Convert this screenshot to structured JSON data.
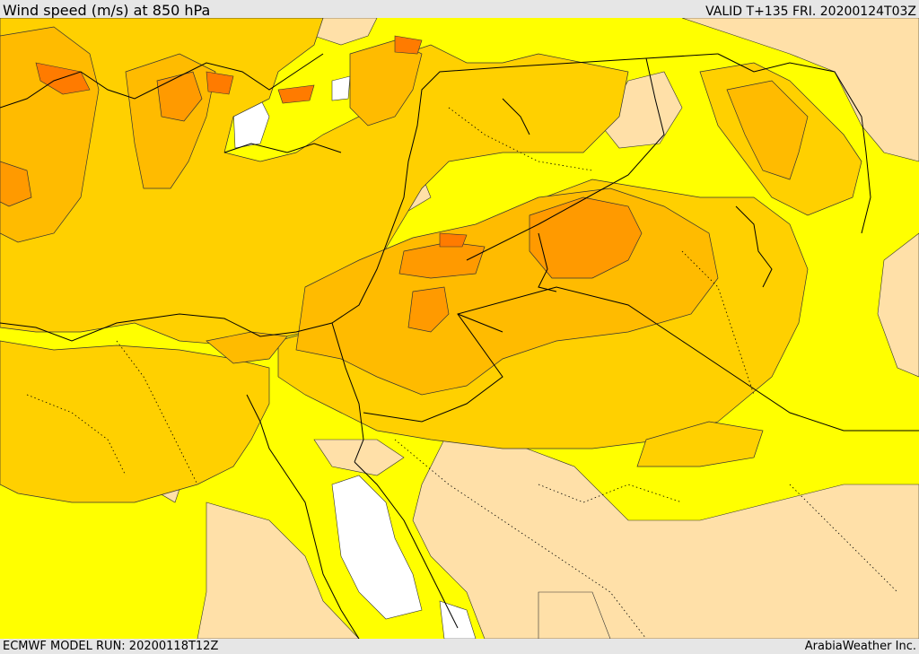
{
  "header": {
    "title": "Wind speed (m/s) at 850 hPa",
    "valid": "VALID T+135 FRI. 20200124T03Z"
  },
  "footer": {
    "model_run": "ECMWF MODEL RUN: 20200118T12Z",
    "credit": "ArabiaWeather Inc."
  },
  "map": {
    "colors": {
      "bg_yellow": "#ffff00",
      "lightest": "#ffe0a8",
      "white": "#ffffff",
      "yellow_orange": "#ffd000",
      "orange_light": "#ffbb00",
      "orange": "#ff9a00",
      "orange_dark": "#ff7b00",
      "boundary": "#000000"
    }
  }
}
